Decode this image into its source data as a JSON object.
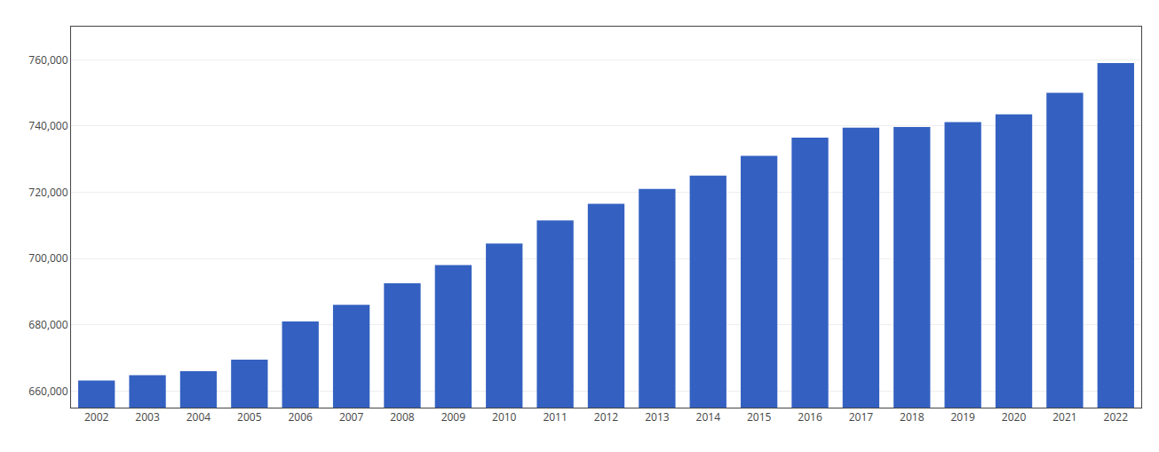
{
  "chart_data": {
    "type": "bar",
    "categories": [
      "2002",
      "2003",
      "2004",
      "2005",
      "2006",
      "2007",
      "2008",
      "2009",
      "2010",
      "2011",
      "2012",
      "2013",
      "2014",
      "2015",
      "2016",
      "2017",
      "2018",
      "2019",
      "2020",
      "2021",
      "2022"
    ],
    "values": [
      663200,
      664800,
      666000,
      669500,
      681000,
      686000,
      692500,
      698000,
      704500,
      711500,
      716500,
      721000,
      725000,
      731000,
      736500,
      739500,
      739700,
      741200,
      743500,
      750000,
      759000
    ],
    "color": "#3461c1",
    "ylim": [
      655000,
      770000
    ],
    "yticks": [
      {
        "value": 660000,
        "label": "660,000"
      },
      {
        "value": 680000,
        "label": "680,000"
      },
      {
        "value": 700000,
        "label": "700,000"
      },
      {
        "value": 720000,
        "label": "720,000"
      },
      {
        "value": 740000,
        "label": "740,000"
      },
      {
        "value": 760000,
        "label": "760,000"
      }
    ],
    "grid": true
  }
}
